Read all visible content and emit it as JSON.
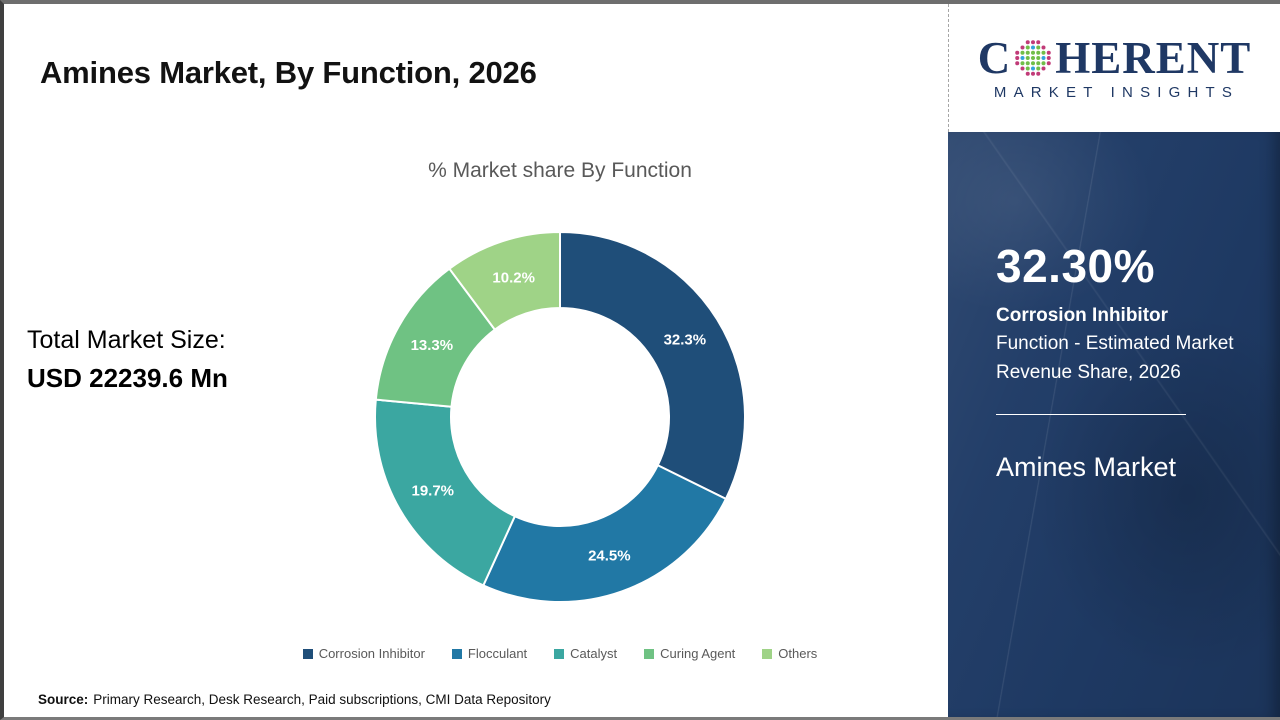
{
  "page": {
    "title": "Amines Market, By Function, 2026",
    "source_label": "Source:",
    "source_text": "Primary Research, Desk Research, Paid subscriptions, CMI Data Repository"
  },
  "logo": {
    "prefix": "C",
    "suffix": "HERENT",
    "subtitle": "MARKET INSIGHTS",
    "brand_color": "#1F3864",
    "globe_colors": {
      "outer": "#C13B78",
      "inner": "#71BE48",
      "accent": "#33A3DC"
    }
  },
  "total_market": {
    "label": "Total Market Size:",
    "value": "USD 22239.6 Mn"
  },
  "chart_data": {
    "type": "pie",
    "donut": true,
    "inner_radius_ratio": 0.59,
    "title": "% Market share By Function",
    "categories": [
      "Corrosion Inhibitor",
      "Flocculant",
      "Catalyst",
      "Curing Agent",
      "Others"
    ],
    "values": [
      32.3,
      24.5,
      19.7,
      13.3,
      10.2
    ],
    "labels": [
      "32.3%",
      "24.5%",
      "19.7%",
      "13.3%",
      "10.2%"
    ],
    "colors": [
      "#1F4E79",
      "#2178A5",
      "#3BA7A1",
      "#6FC283",
      "#9FD387"
    ],
    "start_angle": 0,
    "direction": "clockwise",
    "legend_position": "bottom",
    "label_color": "#FFFFFF"
  },
  "sidebar": {
    "bg_color": "#1F3B66",
    "stat_value": "32.30%",
    "stat_title": "Corrosion Inhibitor",
    "stat_desc": "Function - Estimated Market Revenue Share, 2026",
    "market_name": "Amines Market"
  }
}
